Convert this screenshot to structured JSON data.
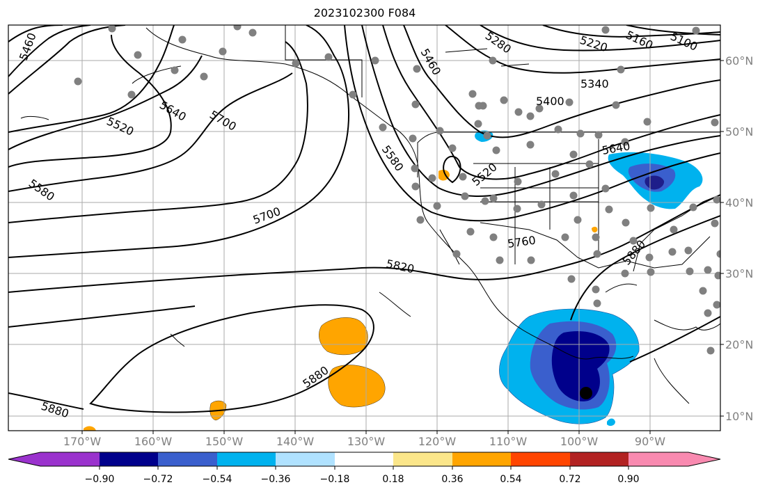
{
  "title": "2023102300 F084",
  "lon_labels": [
    "170°W",
    "160°W",
    "150°W",
    "140°W",
    "130°W",
    "120°W",
    "110°W",
    "100°W",
    "90°W"
  ],
  "lat_labels": [
    "60°N",
    "50°N",
    "40°N",
    "30°N",
    "20°N",
    "10°N"
  ],
  "contour_labels": [
    {
      "id": "c5460a",
      "text": "5460"
    },
    {
      "id": "c5520a",
      "text": "5520"
    },
    {
      "id": "c5640a",
      "text": "5640"
    },
    {
      "id": "c5700a",
      "text": "5700"
    },
    {
      "id": "c5580a",
      "text": "5580"
    },
    {
      "id": "c5700b",
      "text": "5700"
    },
    {
      "id": "c5820a",
      "text": "5820"
    },
    {
      "id": "c5880a",
      "text": "5880"
    },
    {
      "id": "c5880b",
      "text": "5880"
    },
    {
      "id": "c5460b",
      "text": "5460"
    },
    {
      "id": "c5280",
      "text": "5280"
    },
    {
      "id": "c5220",
      "text": "5220"
    },
    {
      "id": "c5160",
      "text": "5160"
    },
    {
      "id": "c5100",
      "text": "5100"
    },
    {
      "id": "c5340",
      "text": "5340"
    },
    {
      "id": "c5400",
      "text": "5400"
    },
    {
      "id": "c5580b",
      "text": "5580"
    },
    {
      "id": "c5520b",
      "text": "5520"
    },
    {
      "id": "c5640b",
      "text": "5640"
    },
    {
      "id": "c5760",
      "text": "5760"
    },
    {
      "id": "c5880c",
      "text": "5880"
    }
  ],
  "colorbar": {
    "ticks": [
      "−0.90",
      "−0.72",
      "−0.54",
      "−0.36",
      "−0.18",
      "0.18",
      "0.36",
      "0.54",
      "0.72",
      "0.90"
    ],
    "colors": [
      "#9a32cd",
      "#00008b",
      "#3a5fcd",
      "#00b2ee",
      "#b0e2ff",
      "#ffffff",
      "#fbe68a",
      "#ffa500",
      "#ff4500",
      "#b22222",
      "#f98ab0"
    ]
  }
}
